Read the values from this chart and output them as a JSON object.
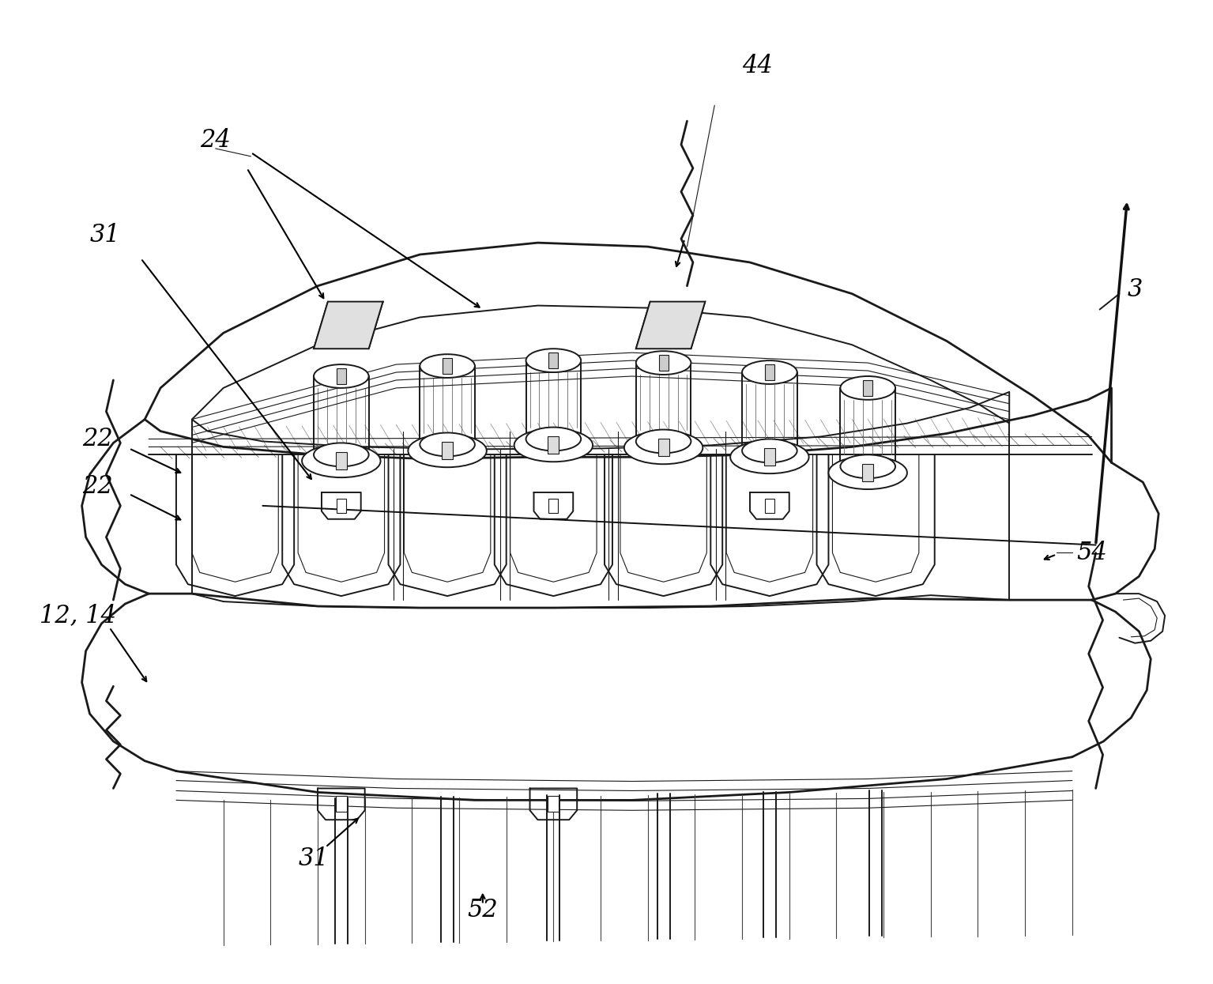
{
  "background_color": "#ffffff",
  "line_color": "#1a1a1a",
  "lw_main": 2.0,
  "lw_med": 1.4,
  "lw_thin": 0.8,
  "fig_width": 15.35,
  "fig_height": 12.45,
  "label_fontsize": 22,
  "label_fontstyle": "italic",
  "label_fontfamily": "serif"
}
